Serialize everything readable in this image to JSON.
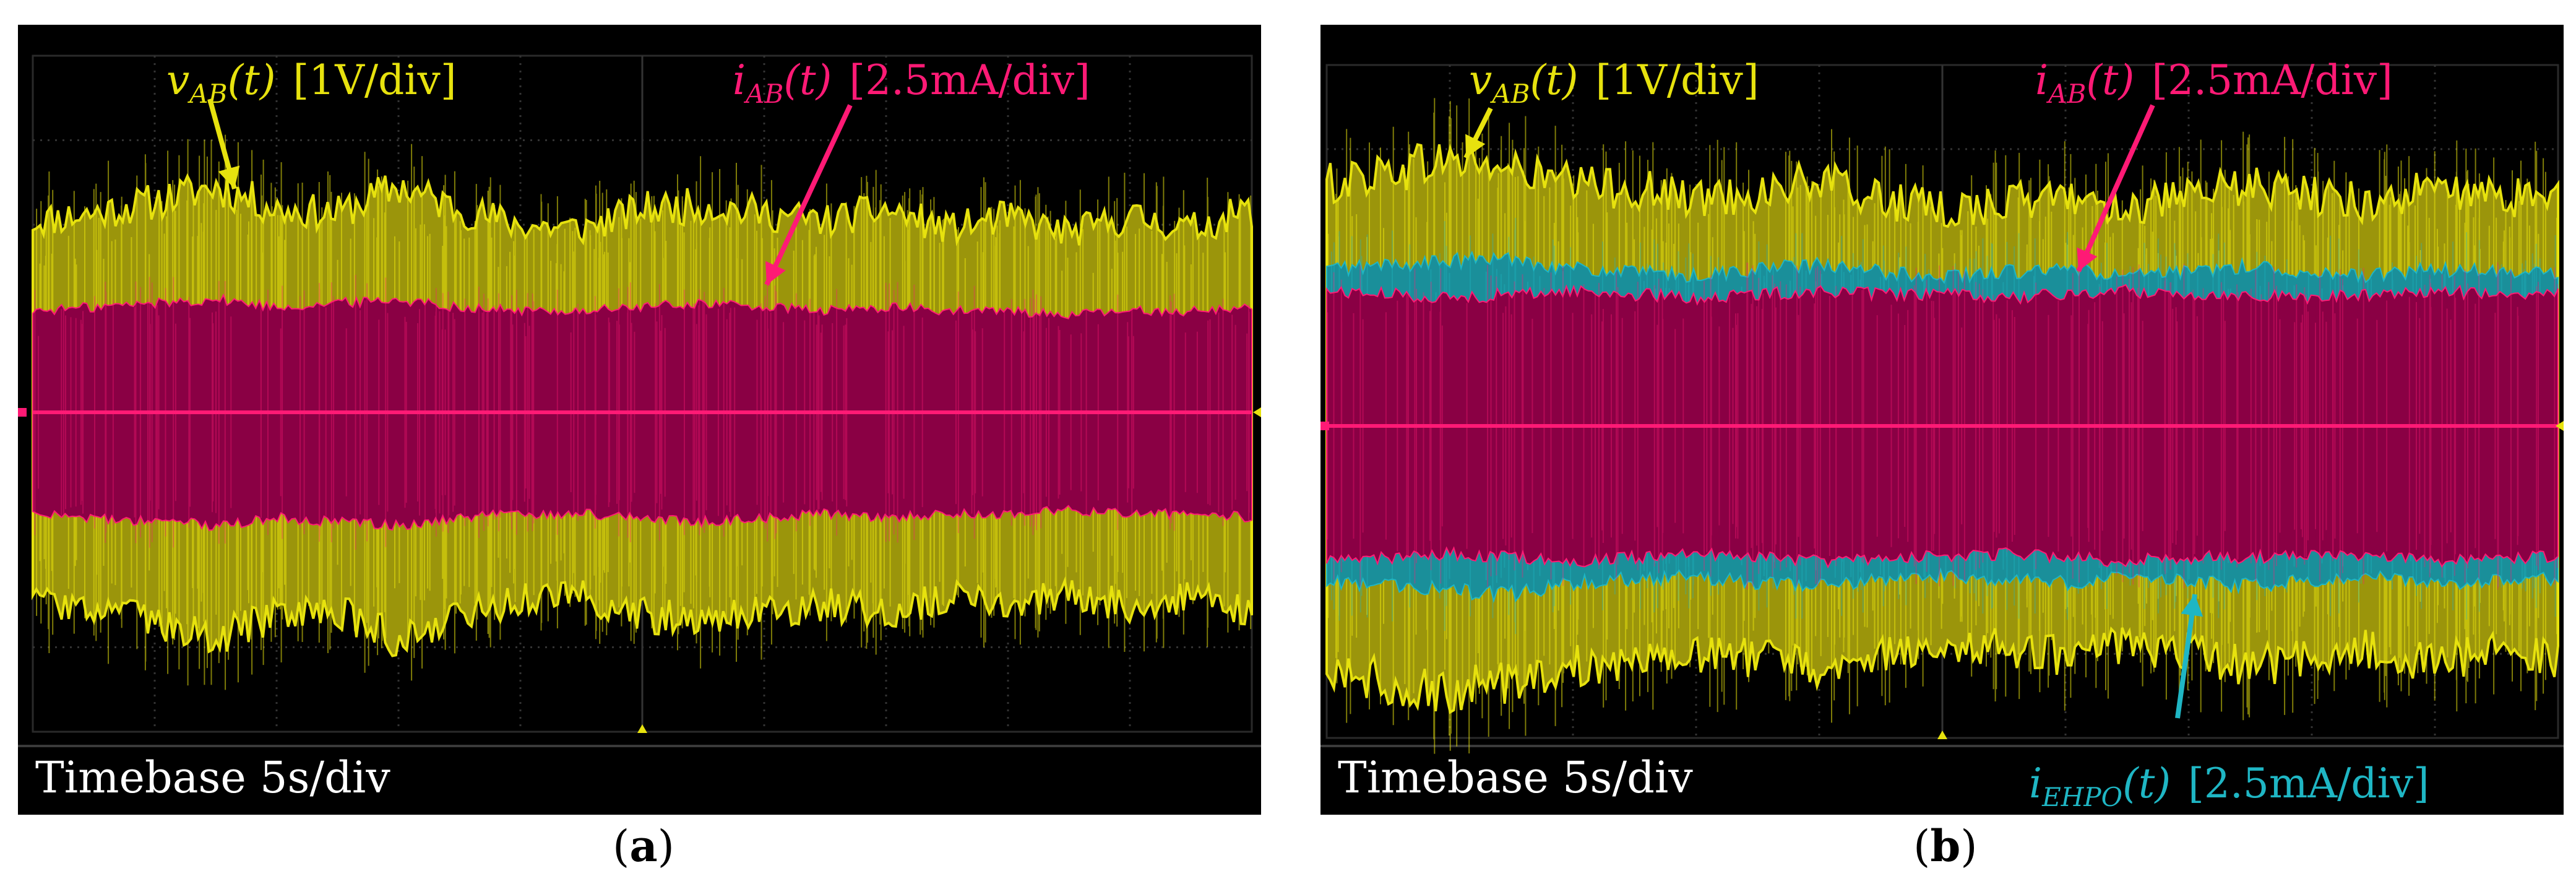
{
  "figure": {
    "panels": [
      {
        "id": "a",
        "caption_open": "(",
        "caption_letter": "a",
        "caption_close": ")",
        "timebase_label": "Timebase 5s/div"
      },
      {
        "id": "b",
        "caption_open": "(",
        "caption_letter": "b",
        "caption_close": ")",
        "timebase_label": "Timebase 5s/div"
      }
    ]
  },
  "chart_data": [
    {
      "type": "area",
      "title": "(a)",
      "xlabel": "Timebase 5s/div",
      "x_unit": "s",
      "x_per_div": 5,
      "x_divisions": 10,
      "y_divisions": 8,
      "grid": true,
      "series": [
        {
          "name": "vAB(t)",
          "label_symbol": "v",
          "label_subscript": "AB",
          "label_arg": "(t)",
          "scale": "[1V/div]",
          "volts_per_div": 1,
          "color": "#e7e20e",
          "envelope_peak_div": [
            2.45,
            2.55,
            2.7,
            2.9,
            2.6,
            2.55,
            2.9,
            2.6,
            2.4,
            2.35,
            2.6,
            2.65,
            2.55,
            2.45,
            2.6,
            2.35,
            2.5,
            2.3,
            2.5,
            2.35,
            2.6
          ]
        },
        {
          "name": "iAB(t)",
          "label_symbol": "i",
          "label_subscript": "AB",
          "label_arg": "(t)",
          "scale": "[2.5mA/div]",
          "mA_per_div": 2.5,
          "color": "#ff1a75",
          "envelope_peak_div": [
            1.3,
            1.35,
            1.4,
            1.45,
            1.35,
            1.4,
            1.45,
            1.35,
            1.3,
            1.3,
            1.35,
            1.4,
            1.35,
            1.3,
            1.35,
            1.3,
            1.3,
            1.25,
            1.3,
            1.3,
            1.35
          ]
        }
      ]
    },
    {
      "type": "area",
      "title": "(b)",
      "xlabel": "Timebase 5s/div",
      "x_unit": "s",
      "x_per_div": 5,
      "x_divisions": 10,
      "y_divisions": 8,
      "grid": true,
      "series": [
        {
          "name": "vAB(t)",
          "label_symbol": "v",
          "label_subscript": "AB",
          "label_arg": "(t)",
          "scale": "[1V/div]",
          "volts_per_div": 1,
          "color": "#e7e20e",
          "envelope_peak_div": [
            3.3,
            3.5,
            3.65,
            3.5,
            3.3,
            3.25,
            3.1,
            3.2,
            3.35,
            3.1,
            2.95,
            3.05,
            3.15,
            3.0,
            3.1,
            3.3,
            3.15,
            3.05,
            3.25,
            3.1,
            3.2
          ]
        },
        {
          "name": "iAB(t)",
          "label_symbol": "i",
          "label_subscript": "AB",
          "label_arg": "(t)",
          "scale": "[2.5mA/div]",
          "mA_per_div": 2.5,
          "color": "#ff1a75",
          "envelope_peak_div": [
            1.85,
            1.8,
            1.75,
            1.8,
            1.85,
            1.8,
            1.75,
            1.8,
            1.85,
            1.8,
            1.8,
            1.75,
            1.8,
            1.85,
            1.8,
            1.8,
            1.75,
            1.8,
            1.85,
            1.8,
            1.8
          ]
        },
        {
          "name": "iEHPO(t)",
          "label_symbol": "i",
          "label_subscript": "EHPO",
          "label_arg": "(t)",
          "scale": "[2.5mA/div]",
          "mA_per_div": 2.5,
          "color": "#1fb6c4",
          "envelope_peak_div": [
            2.15,
            2.2,
            2.25,
            2.3,
            2.15,
            2.1,
            2.05,
            2.15,
            2.2,
            2.1,
            2.05,
            2.1,
            2.15,
            2.05,
            2.1,
            2.2,
            2.1,
            2.05,
            2.15,
            2.1,
            2.1
          ]
        }
      ]
    }
  ]
}
